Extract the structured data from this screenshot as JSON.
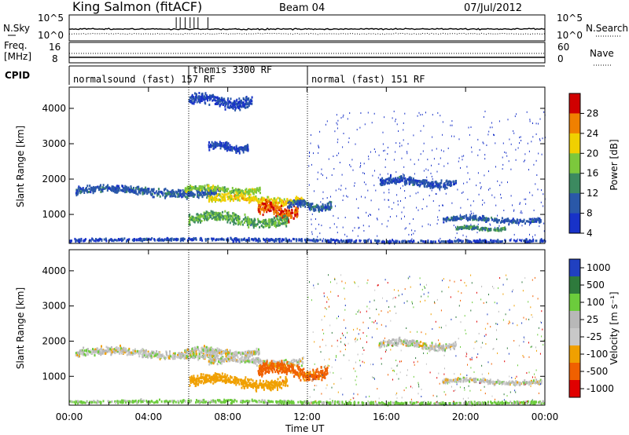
{
  "header": {
    "title": "King Salmon (fitACF)",
    "beam": "Beam 04",
    "date": "07/Jul/2012"
  },
  "noise_panel": {
    "left_label": "N.Sky",
    "right_label": "N.Search",
    "left_ticks": [
      "10^5",
      "10^0"
    ],
    "right_ticks": [
      "10^5",
      "10^0"
    ]
  },
  "freq_panel": {
    "left_label_top": "Freq.",
    "left_label_bottom": "[MHz]",
    "right_label": "Nave",
    "left_ticks": [
      "16",
      "8"
    ],
    "right_ticks": [
      "60",
      "0"
    ]
  },
  "cpid_panel": {
    "label": "CPID",
    "segments": [
      {
        "label": "normalsound (fast) 157 RF",
        "start_hour": 0,
        "end_hour": 6
      },
      {
        "label": "themis 3300 RF",
        "start_hour": 6,
        "end_hour": 12
      },
      {
        "label": "normal (fast) 151 RF",
        "start_hour": 12,
        "end_hour": 24
      }
    ]
  },
  "chart_data": [
    {
      "type": "heatmap",
      "title": "",
      "xlabel": "Time UT",
      "ylabel": "Slant Range [km]",
      "xlim": [
        0,
        24
      ],
      "ylim": [
        180,
        4600
      ],
      "y_ticks": [
        1000,
        2000,
        3000,
        4000
      ],
      "colorbar": {
        "label": "Power [dB]",
        "ticks": [
          "4",
          "8",
          "12",
          "16",
          "20",
          "24",
          "28"
        ],
        "colors": [
          "#1832c8",
          "#2a58a8",
          "#3c8a60",
          "#7cc83c",
          "#f0d000",
          "#f08000",
          "#d00000"
        ]
      },
      "echo_regions": [
        {
          "t_start": 0.3,
          "t_end": 7.5,
          "r_center": 1650,
          "r_width": 320,
          "power_db": 6,
          "note": "band"
        },
        {
          "t_start": 5.8,
          "t_end": 9.6,
          "r_center": 1700,
          "r_width": 250,
          "power_db": 14
        },
        {
          "t_start": 7.0,
          "t_end": 11.8,
          "r_center": 1420,
          "r_width": 300,
          "power_db": 18
        },
        {
          "t_start": 9.5,
          "t_end": 11.5,
          "r_center": 1100,
          "r_width": 500,
          "power_db": 24
        },
        {
          "t_start": 6.0,
          "t_end": 11.0,
          "r_center": 850,
          "r_width": 400,
          "power_db": 12
        },
        {
          "t_start": 11.0,
          "t_end": 13.2,
          "r_center": 1250,
          "r_width": 300,
          "power_db": 6
        },
        {
          "t_start": 15.6,
          "t_end": 19.5,
          "r_center": 1900,
          "r_width": 300,
          "power_db": 5
        },
        {
          "t_start": 18.8,
          "t_end": 23.8,
          "r_center": 850,
          "r_width": 200,
          "power_db": 6
        },
        {
          "t_start": 19.5,
          "t_end": 22.0,
          "r_center": 600,
          "r_width": 150,
          "power_db": 10
        },
        {
          "t_start": 0.0,
          "t_end": 24.0,
          "r_center": 260,
          "r_width": 120,
          "power_db": 4
        },
        {
          "t_start": 7.0,
          "t_end": 9.0,
          "r_center": 2900,
          "r_width": 300,
          "power_db": 4
        },
        {
          "t_start": 6.0,
          "t_end": 9.2,
          "r_center": 4200,
          "r_width": 400,
          "power_db": 4
        }
      ]
    },
    {
      "type": "heatmap",
      "title": "",
      "xlabel": "Time UT",
      "ylabel": "Slant Range [km]",
      "xlim": [
        0,
        24
      ],
      "ylim": [
        180,
        4600
      ],
      "y_ticks": [
        1000,
        2000,
        3000,
        4000
      ],
      "x_ticks": [
        "00:00",
        "04:00",
        "08:00",
        "12:00",
        "16:00",
        "20:00",
        "00:00"
      ],
      "colorbar": {
        "label": "Velocity [m s⁻¹]",
        "ticks": [
          "1000",
          "500",
          "100",
          "25",
          "-25",
          "-100",
          "-500",
          "-1000"
        ],
        "colors": [
          "#2040c0",
          "#2e7a3c",
          "#6ccc3c",
          "#b8b8b8",
          "#c8c8c8",
          "#f0a000",
          "#f06000",
          "#e00000"
        ]
      },
      "echo_regions": [
        {
          "t_start": 0.3,
          "t_end": 7.5,
          "r_center": 1650,
          "r_width": 320,
          "velocity": 0
        },
        {
          "t_start": 5.8,
          "t_end": 9.6,
          "r_center": 1700,
          "r_width": 250,
          "velocity": 0
        },
        {
          "t_start": 7.0,
          "t_end": 11.8,
          "r_center": 1420,
          "r_width": 300,
          "velocity": 0
        },
        {
          "t_start": 9.5,
          "t_end": 13.0,
          "r_center": 1150,
          "r_width": 500,
          "velocity": -300
        },
        {
          "t_start": 6.0,
          "t_end": 11.0,
          "r_center": 850,
          "r_width": 400,
          "velocity": -150
        },
        {
          "t_start": 15.6,
          "t_end": 19.5,
          "r_center": 1900,
          "r_width": 300,
          "velocity": 0
        },
        {
          "t_start": 18.8,
          "t_end": 23.8,
          "r_center": 850,
          "r_width": 200,
          "velocity": 0
        },
        {
          "t_start": 0.0,
          "t_end": 24.0,
          "r_center": 260,
          "r_width": 120,
          "velocity": 80
        }
      ]
    }
  ]
}
